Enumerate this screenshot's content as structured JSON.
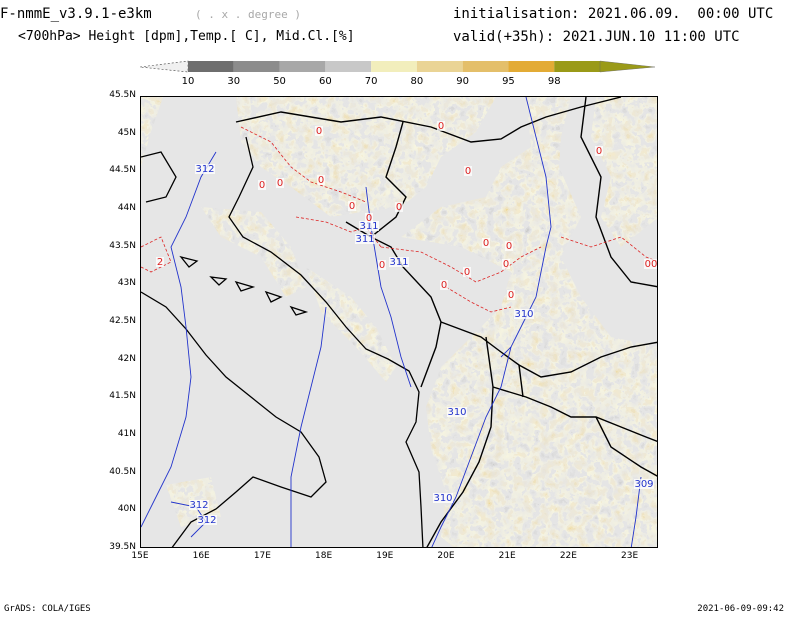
{
  "header": {
    "model_title": "F-nmmE_v3.9.1-e3km",
    "model_hint": "( . x . degree )",
    "variable_title": "<700hPa> Height [dpm],Temp.[ C], Mid.Cl.[%]",
    "init_line": "initialisation: 2021.06.09.  00:00 UTC",
    "valid_line": "valid(+35h): 2021.JUN.10 11:00 UTC"
  },
  "colorbar": {
    "labels": [
      "10",
      "30",
      "50",
      "60",
      "70",
      "80",
      "90",
      "95",
      "98"
    ],
    "colors": [
      "#6e6e6e",
      "#8c8c8c",
      "#a8a8a8",
      "#c8c8c8",
      "#f2eebc",
      "#ead495",
      "#e4bf6a",
      "#e3ab35",
      "#9a9a18"
    ],
    "below_color": "#f0f0f0"
  },
  "map": {
    "latitude_labels": [
      "45.5N",
      "45N",
      "44.5N",
      "44N",
      "43.5N",
      "43N",
      "42.5N",
      "42N",
      "41.5N",
      "41N",
      "40.5N",
      "40N",
      "39.5N"
    ],
    "longitude_labels": [
      "15E",
      "16E",
      "17E",
      "18E",
      "19E",
      "20E",
      "21E",
      "22E",
      "23E"
    ],
    "height_contour_labels": [
      "312",
      "311",
      "311",
      "311",
      "310",
      "310",
      "310",
      "312",
      "312",
      "309"
    ],
    "temperature_contour_labels": [
      "0",
      "0",
      "0",
      "0",
      "0",
      "0",
      "0",
      "0",
      "0",
      "0",
      "0",
      "0",
      "0",
      "0",
      "0",
      "0",
      "0",
      "2",
      "00"
    ],
    "colors": {
      "sea": "#e6e6e6",
      "coast": "#000000",
      "height_contour": "#2233cc",
      "temp_contour": "#dd2222"
    }
  },
  "footer": {
    "left": "GrADS: COLA/IGES",
    "right": "2021-06-09-09:42"
  }
}
